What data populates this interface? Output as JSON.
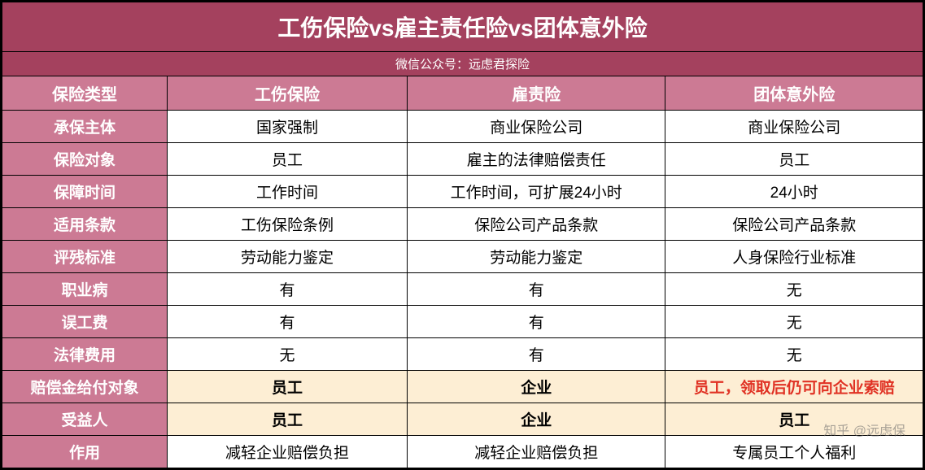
{
  "table": {
    "type": "table",
    "title": "工伤保险vs雇主责任险vs团体意外险",
    "subtitle": "微信公众号：远虑君探险",
    "colors": {
      "title_bg": "#a4415e",
      "header_bg": "#cc7a94",
      "header_text": "#ffffff",
      "cell_bg": "#ffffff",
      "highlight_bg": "#fdeed4",
      "highlight_text_red": "#e03224",
      "border": "#000000"
    },
    "fontsize": {
      "title": 28,
      "subtitle": 15,
      "header": 20,
      "cell": 19
    },
    "column_widths_pct": [
      18,
      26,
      28,
      28
    ],
    "columns": [
      "保险类型",
      "工伤保险",
      "雇责险",
      "团体意外险"
    ],
    "rows": [
      {
        "label": "承保主体",
        "cells": [
          "国家强制",
          "商业保险公司",
          "商业保险公司"
        ],
        "highlight": false
      },
      {
        "label": "保险对象",
        "cells": [
          "员工",
          "雇主的法律赔偿责任",
          "员工"
        ],
        "highlight": false
      },
      {
        "label": "保障时间",
        "cells": [
          "工作时间",
          "工作时间，可扩展24小时",
          "24小时"
        ],
        "highlight": false
      },
      {
        "label": "适用条款",
        "cells": [
          "工伤保险条例",
          "保险公司产品条款",
          "保险公司产品条款"
        ],
        "highlight": false
      },
      {
        "label": "评残标准",
        "cells": [
          "劳动能力鉴定",
          "劳动能力鉴定",
          "人身保险行业标准"
        ],
        "highlight": false
      },
      {
        "label": "职业病",
        "cells": [
          "有",
          "有",
          "无"
        ],
        "highlight": false
      },
      {
        "label": "误工费",
        "cells": [
          "有",
          "有",
          "无"
        ],
        "highlight": false
      },
      {
        "label": "法律费用",
        "cells": [
          "无",
          "有",
          "无"
        ],
        "highlight": false
      },
      {
        "label": "赔偿金给付对象",
        "cells": [
          "员工",
          "企业",
          "员工，领取后仍可向企业索赔"
        ],
        "highlight": true,
        "red_cells": [
          2
        ]
      },
      {
        "label": "受益人",
        "cells": [
          "员工",
          "企业",
          "员工"
        ],
        "highlight": true
      },
      {
        "label": "作用",
        "cells": [
          "减轻企业赔偿负担",
          "减轻企业赔偿负担",
          "专属员工个人福利"
        ],
        "highlight": false
      }
    ]
  },
  "watermark": "知乎 @远虑保"
}
